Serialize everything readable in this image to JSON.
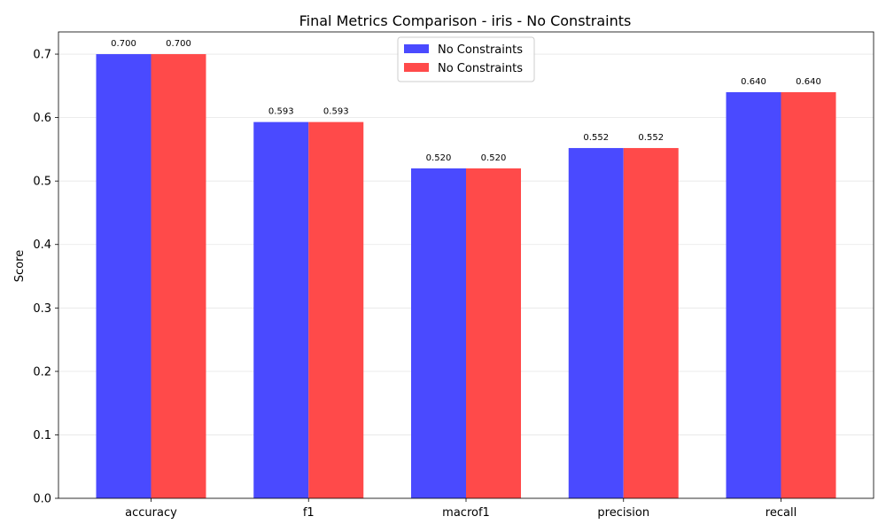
{
  "chart_data": {
    "type": "bar",
    "title": "Final Metrics Comparison - iris - No Constraints",
    "xlabel": "",
    "ylabel": "Score",
    "categories": [
      "accuracy",
      "f1",
      "macrof1",
      "precision",
      "recall"
    ],
    "series": [
      {
        "name": "No Constraints",
        "color": "#4a4aff",
        "values": [
          0.7,
          0.593,
          0.52,
          0.552,
          0.64
        ]
      },
      {
        "name": "No Constraints",
        "color": "#ff4a4a",
        "values": [
          0.7,
          0.593,
          0.52,
          0.552,
          0.64
        ]
      }
    ],
    "ylim": [
      0,
      0.735
    ],
    "yticks": [
      "0.0",
      "0.1",
      "0.2",
      "0.3",
      "0.4",
      "0.5",
      "0.6",
      "0.7"
    ],
    "data_label_format": "3 decimals",
    "grid": true,
    "legend_position": "top-center"
  }
}
